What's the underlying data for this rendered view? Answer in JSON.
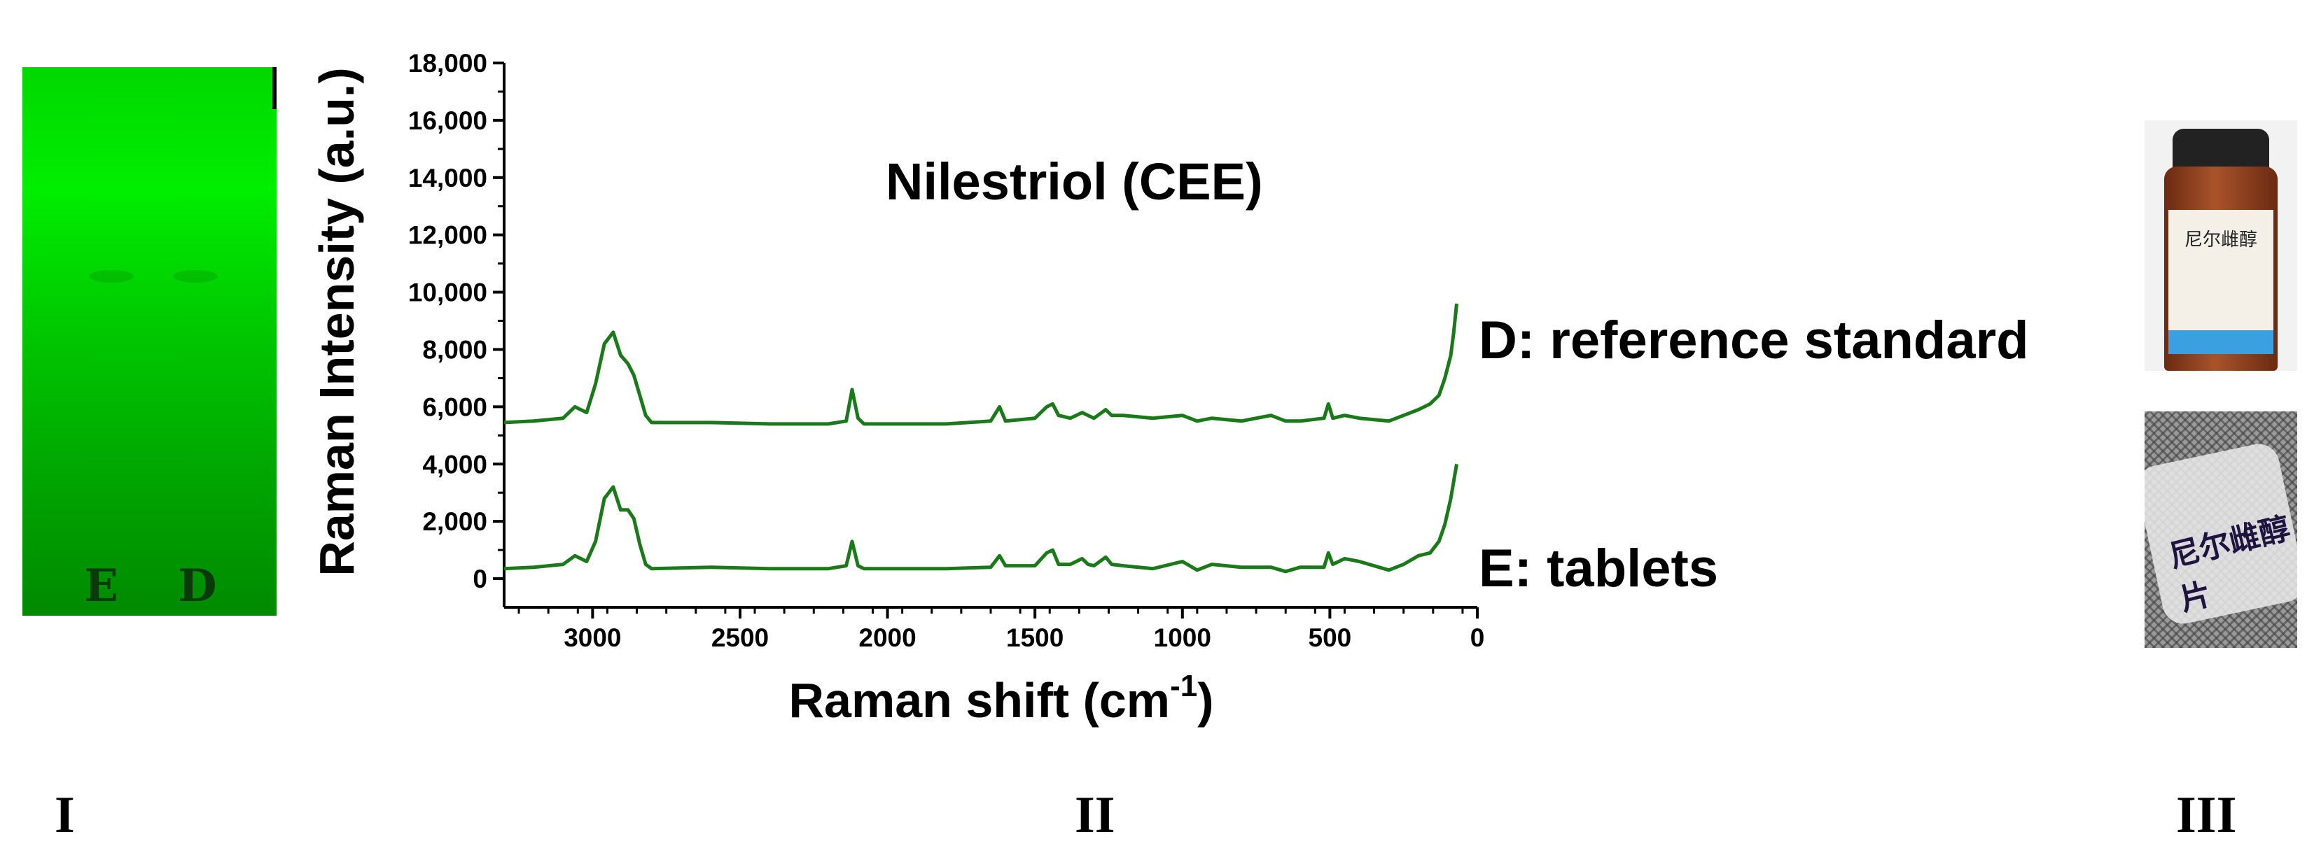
{
  "panels": {
    "I": {
      "label": "I",
      "lanes": [
        {
          "label": "E"
        },
        {
          "label": "D"
        }
      ],
      "plate_color": "#00e000"
    },
    "II": {
      "label": "II"
    },
    "III": {
      "label": "III",
      "vial_label_text": "尼尔雌醇",
      "tablet_text": "尼尔雌醇片"
    }
  },
  "chart_data": {
    "type": "line",
    "title": "Nilestriol (CEE)",
    "xlabel": "Raman shift (cm-1)",
    "xlabel_main": "Raman shift (cm",
    "xlabel_sup": "-1",
    "xlabel_end": ")",
    "ylabel": "Raman Intensity (a.u.)",
    "xlim": [
      3300,
      0
    ],
    "ylim": [
      -1000,
      18000
    ],
    "x_ticks": [
      3000,
      2500,
      2000,
      1500,
      1000,
      500,
      0
    ],
    "y_ticks": [
      0,
      2000,
      4000,
      6000,
      8000,
      10000,
      12000,
      14000,
      16000,
      18000
    ],
    "x_tick_labels": [
      "3000",
      "2500",
      "2000",
      "1500",
      "1000",
      "500",
      "0"
    ],
    "y_tick_labels": [
      "0",
      "2,000",
      "4,000",
      "6,000",
      "8,000",
      "10,000",
      "12,000",
      "14,000",
      "16,000",
      "18,000"
    ],
    "line_color": "#1a7a1a",
    "series": [
      {
        "name": "D: reference standard",
        "x": [
          3300,
          3200,
          3100,
          3060,
          3020,
          2990,
          2960,
          2930,
          2905,
          2880,
          2860,
          2840,
          2820,
          2800,
          2600,
          2400,
          2200,
          2140,
          2120,
          2100,
          2080,
          2000,
          1800,
          1650,
          1620,
          1600,
          1500,
          1460,
          1440,
          1420,
          1380,
          1340,
          1320,
          1300,
          1260,
          1240,
          1200,
          1100,
          1000,
          950,
          900,
          800,
          700,
          650,
          600,
          520,
          505,
          490,
          450,
          400,
          300,
          250,
          200,
          160,
          130,
          110,
          90,
          80,
          70
        ],
        "y": [
          5450,
          5500,
          5600,
          6000,
          5800,
          6800,
          8200,
          8600,
          7800,
          7500,
          7100,
          6400,
          5700,
          5450,
          5450,
          5400,
          5400,
          5500,
          6600,
          5600,
          5400,
          5400,
          5400,
          5500,
          6000,
          5500,
          5600,
          6000,
          6100,
          5700,
          5600,
          5800,
          5700,
          5600,
          5900,
          5700,
          5700,
          5600,
          5700,
          5500,
          5600,
          5500,
          5700,
          5500,
          5500,
          5600,
          6100,
          5600,
          5700,
          5600,
          5500,
          5700,
          5900,
          6100,
          6400,
          7000,
          7800,
          8600,
          9600
        ]
      },
      {
        "name": "E: tablets",
        "x": [
          3300,
          3200,
          3100,
          3060,
          3020,
          2990,
          2960,
          2930,
          2905,
          2880,
          2860,
          2840,
          2820,
          2800,
          2600,
          2400,
          2200,
          2140,
          2120,
          2100,
          2080,
          2000,
          1800,
          1650,
          1620,
          1600,
          1500,
          1460,
          1440,
          1420,
          1380,
          1340,
          1320,
          1300,
          1260,
          1240,
          1200,
          1100,
          1000,
          950,
          900,
          800,
          700,
          650,
          600,
          520,
          505,
          490,
          450,
          400,
          300,
          250,
          200,
          160,
          130,
          110,
          90,
          80,
          70
        ],
        "y": [
          350,
          400,
          500,
          800,
          600,
          1300,
          2800,
          3200,
          2400,
          2400,
          2100,
          1200,
          500,
          350,
          400,
          350,
          350,
          450,
          1300,
          450,
          350,
          350,
          350,
          400,
          800,
          450,
          450,
          900,
          1000,
          500,
          500,
          700,
          500,
          450,
          750,
          500,
          450,
          350,
          600,
          300,
          500,
          400,
          400,
          250,
          400,
          400,
          900,
          500,
          700,
          600,
          300,
          500,
          800,
          900,
          1300,
          1900,
          2800,
          3400,
          4000
        ]
      }
    ],
    "series_labels": [
      "D: reference standard",
      "E: tablets"
    ]
  }
}
